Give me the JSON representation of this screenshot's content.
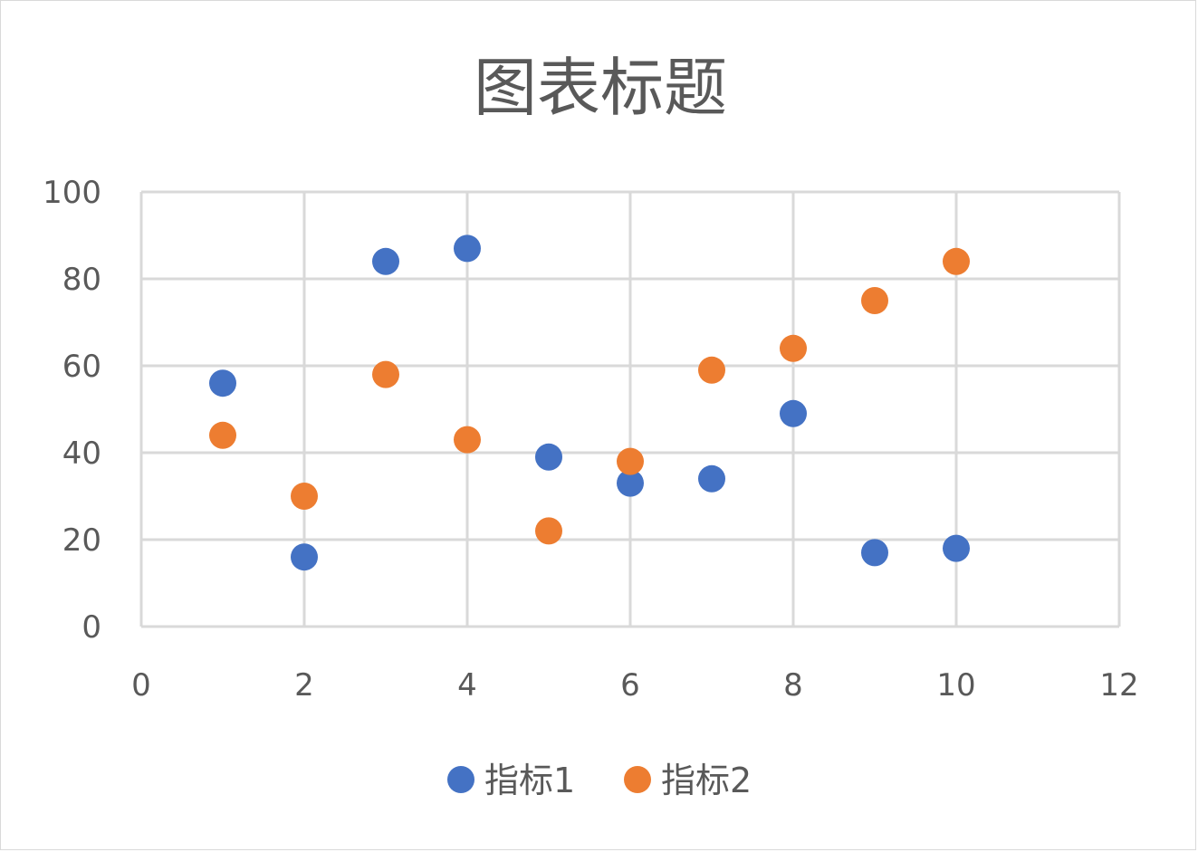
{
  "chart_data": {
    "type": "scatter",
    "title": "图表标题",
    "xlabel": "",
    "ylabel": "",
    "xlim": [
      0,
      12
    ],
    "ylim": [
      0,
      100
    ],
    "x_ticks": [
      0,
      2,
      4,
      6,
      8,
      10,
      12
    ],
    "y_ticks": [
      0,
      20,
      40,
      60,
      80,
      100
    ],
    "grid": true,
    "legend_position": "bottom",
    "series": [
      {
        "name": "指标1",
        "color": "#4472c4",
        "points": [
          {
            "x": 1,
            "y": 56
          },
          {
            "x": 2,
            "y": 16
          },
          {
            "x": 3,
            "y": 84
          },
          {
            "x": 4,
            "y": 87
          },
          {
            "x": 5,
            "y": 39
          },
          {
            "x": 6,
            "y": 33
          },
          {
            "x": 7,
            "y": 34
          },
          {
            "x": 8,
            "y": 49
          },
          {
            "x": 9,
            "y": 17
          },
          {
            "x": 10,
            "y": 18
          }
        ]
      },
      {
        "name": "指标2",
        "color": "#ed7d31",
        "points": [
          {
            "x": 1,
            "y": 44
          },
          {
            "x": 2,
            "y": 30
          },
          {
            "x": 3,
            "y": 58
          },
          {
            "x": 4,
            "y": 43
          },
          {
            "x": 5,
            "y": 22
          },
          {
            "x": 6,
            "y": 38
          },
          {
            "x": 7,
            "y": 59
          },
          {
            "x": 8,
            "y": 64
          },
          {
            "x": 9,
            "y": 75
          },
          {
            "x": 10,
            "y": 84
          }
        ]
      }
    ]
  }
}
